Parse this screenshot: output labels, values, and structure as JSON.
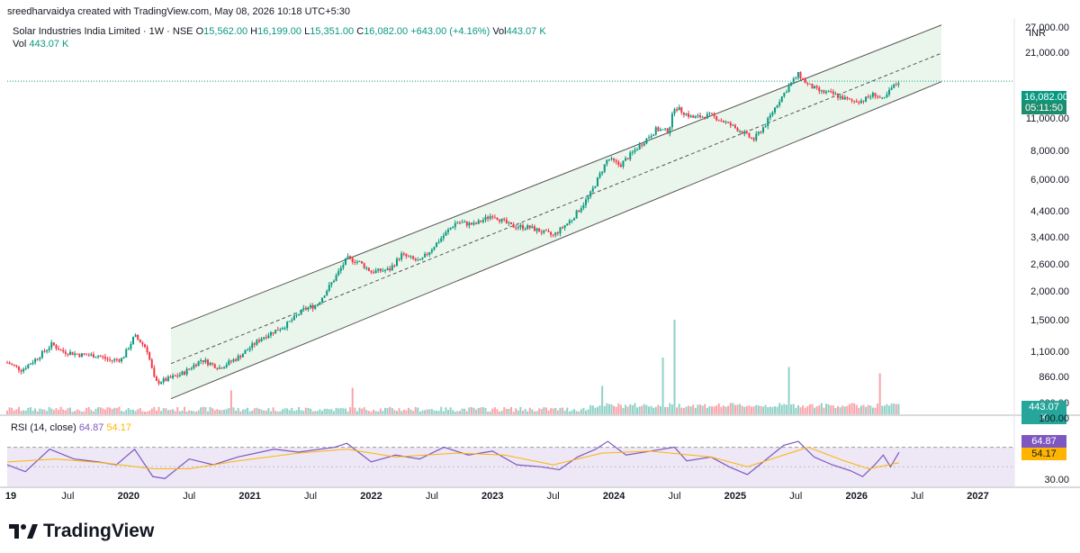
{
  "header": {
    "text": "sreedharvaidya created with TradingView.com, May 08, 2026 10:18 UTC+5:30"
  },
  "legend": {
    "symbol": "Solar Industries India Limited · 1W · NSE",
    "o_label": "O",
    "o": "15,562.00",
    "h_label": "H",
    "h": "16,199.00",
    "l_label": "L",
    "l": "15,351.00",
    "c_label": "C",
    "c": "16,082.00",
    "change": "+643.00 (+4.16%)",
    "vol_label": "Vol",
    "vol": "443.07 K"
  },
  "vol_legend": {
    "label": "Vol",
    "value": "443.07 K"
  },
  "rsi_legend": {
    "label": "RSI (14, close)",
    "value1": "64.87",
    "value2": "54.17"
  },
  "currency": "INR",
  "price_axis": [
    {
      "label": "27,000.00",
      "price": 27000
    },
    {
      "label": "21,000.00",
      "price": 21000
    },
    {
      "label": "11,000.00",
      "price": 11000
    },
    {
      "label": "8,000.00",
      "price": 8000
    },
    {
      "label": "6,000.00",
      "price": 6000
    },
    {
      "label": "4,400.00",
      "price": 4400
    },
    {
      "label": "3,400.00",
      "price": 3400
    },
    {
      "label": "2,600.00",
      "price": 2600
    },
    {
      "label": "2,000.00",
      "price": 2000
    },
    {
      "label": "1,500.00",
      "price": 1500
    },
    {
      "label": "1,100.00",
      "price": 1100
    },
    {
      "label": "860.00",
      "price": 860
    },
    {
      "label": "660.00",
      "price": 660
    }
  ],
  "tags": {
    "price": "16,082.00",
    "countdown": "05:11:50",
    "volume": "443.07 K",
    "rsi": "64.87",
    "rsi_ma": "54.17"
  },
  "rsi_axis": {
    "top": "100.00",
    "bottom": "30.00"
  },
  "time_axis": [
    {
      "label": "19",
      "t": 2019.0,
      "year": true
    },
    {
      "label": "Jul",
      "t": 2019.5,
      "year": false
    },
    {
      "label": "2020",
      "t": 2020.0,
      "year": true
    },
    {
      "label": "Jul",
      "t": 2020.5,
      "year": false
    },
    {
      "label": "2021",
      "t": 2021.0,
      "year": true
    },
    {
      "label": "Jul",
      "t": 2021.5,
      "year": false
    },
    {
      "label": "2022",
      "t": 2022.0,
      "year": true
    },
    {
      "label": "Jul",
      "t": 2022.5,
      "year": false
    },
    {
      "label": "2023",
      "t": 2023.0,
      "year": true
    },
    {
      "label": "Jul",
      "t": 2023.5,
      "year": false
    },
    {
      "label": "2024",
      "t": 2024.0,
      "year": true
    },
    {
      "label": "Jul",
      "t": 2024.5,
      "year": false
    },
    {
      "label": "2025",
      "t": 2025.0,
      "year": true
    },
    {
      "label": "Jul",
      "t": 2025.5,
      "year": false
    },
    {
      "label": "2026",
      "t": 2026.0,
      "year": true
    },
    {
      "label": "Jul",
      "t": 2026.5,
      "year": false
    },
    {
      "label": "2027",
      "t": 2027.0,
      "year": true
    }
  ],
  "branding": {
    "name": "TradingView"
  },
  "colors": {
    "up": "#089981",
    "down": "#f23645",
    "channel_fill": "#e8f5e9",
    "rsi_band": "#ede7f6",
    "rsi_line": "#7e57c2",
    "rsi_ma": "#ffb400",
    "price_tag": "#089981",
    "countdown_tag": "#1e8c6e"
  },
  "chart_data": {
    "type": "candlestick",
    "title": "Solar Industries India Limited · 1W · NSE",
    "scale": "log",
    "ylim": [
      600,
      30000
    ],
    "xlim": [
      2019.0,
      2027.3
    ],
    "price_series": [
      {
        "t": 2019.0,
        "p": 1000
      },
      {
        "t": 2019.12,
        "p": 930
      },
      {
        "t": 2019.25,
        "p": 1050
      },
      {
        "t": 2019.37,
        "p": 1200
      },
      {
        "t": 2019.45,
        "p": 1120
      },
      {
        "t": 2019.6,
        "p": 1080
      },
      {
        "t": 2019.75,
        "p": 1070
      },
      {
        "t": 2019.85,
        "p": 1020
      },
      {
        "t": 2019.95,
        "p": 1040
      },
      {
        "t": 2020.05,
        "p": 1300
      },
      {
        "t": 2020.15,
        "p": 1150
      },
      {
        "t": 2020.22,
        "p": 820
      },
      {
        "t": 2020.3,
        "p": 840
      },
      {
        "t": 2020.45,
        "p": 900
      },
      {
        "t": 2020.6,
        "p": 1030
      },
      {
        "t": 2020.75,
        "p": 950
      },
      {
        "t": 2020.9,
        "p": 1050
      },
      {
        "t": 2021.1,
        "p": 1280
      },
      {
        "t": 2021.3,
        "p": 1450
      },
      {
        "t": 2021.45,
        "p": 1700
      },
      {
        "t": 2021.55,
        "p": 1760
      },
      {
        "t": 2021.7,
        "p": 2300
      },
      {
        "t": 2021.8,
        "p": 2800
      },
      {
        "t": 2021.9,
        "p": 2700
      },
      {
        "t": 2022.0,
        "p": 2450
      },
      {
        "t": 2022.15,
        "p": 2500
      },
      {
        "t": 2022.25,
        "p": 2900
      },
      {
        "t": 2022.4,
        "p": 2700
      },
      {
        "t": 2022.55,
        "p": 3300
      },
      {
        "t": 2022.7,
        "p": 4000
      },
      {
        "t": 2022.85,
        "p": 3900
      },
      {
        "t": 2023.0,
        "p": 4300
      },
      {
        "t": 2023.15,
        "p": 3850
      },
      {
        "t": 2023.3,
        "p": 3800
      },
      {
        "t": 2023.5,
        "p": 3500
      },
      {
        "t": 2023.65,
        "p": 4100
      },
      {
        "t": 2023.8,
        "p": 5200
      },
      {
        "t": 2023.95,
        "p": 7500
      },
      {
        "t": 2024.05,
        "p": 7000
      },
      {
        "t": 2024.2,
        "p": 8400
      },
      {
        "t": 2024.35,
        "p": 10000
      },
      {
        "t": 2024.45,
        "p": 9800
      },
      {
        "t": 2024.5,
        "p": 12500
      },
      {
        "t": 2024.65,
        "p": 11200
      },
      {
        "t": 2024.8,
        "p": 11500
      },
      {
        "t": 2024.95,
        "p": 10500
      },
      {
        "t": 2025.05,
        "p": 9800
      },
      {
        "t": 2025.15,
        "p": 9000
      },
      {
        "t": 2025.25,
        "p": 10500
      },
      {
        "t": 2025.35,
        "p": 13000
      },
      {
        "t": 2025.45,
        "p": 15500
      },
      {
        "t": 2025.52,
        "p": 17200
      },
      {
        "t": 2025.6,
        "p": 15500
      },
      {
        "t": 2025.7,
        "p": 14500
      },
      {
        "t": 2025.8,
        "p": 14200
      },
      {
        "t": 2025.95,
        "p": 13200
      },
      {
        "t": 2026.05,
        "p": 13300
      },
      {
        "t": 2026.15,
        "p": 14200
      },
      {
        "t": 2026.22,
        "p": 13200
      },
      {
        "t": 2026.28,
        "p": 14800
      },
      {
        "t": 2026.35,
        "p": 16082
      }
    ],
    "volume_series": [
      {
        "t": 2021.85,
        "v": 420
      },
      {
        "t": 2024.5,
        "v": 1500
      },
      {
        "t": 2024.4,
        "v": 900
      },
      {
        "t": 2025.45,
        "v": 750
      },
      {
        "t": 2026.2,
        "v": 650
      },
      {
        "t": 2020.85,
        "v": 380
      },
      {
        "t": 2023.9,
        "v": 450
      }
    ],
    "channel": {
      "start_t": 2020.35,
      "end_t": 2026.7,
      "upper": [
        1400,
        28000
      ],
      "lower": [
        700,
        16000
      ],
      "mid": [
        990,
        21200
      ]
    },
    "rsi_ylim": [
      30,
      100
    ],
    "rsi_series": [
      {
        "t": 2019.0,
        "v": 52
      },
      {
        "t": 2019.15,
        "v": 45
      },
      {
        "t": 2019.35,
        "v": 68
      },
      {
        "t": 2019.55,
        "v": 58
      },
      {
        "t": 2019.75,
        "v": 55
      },
      {
        "t": 2019.9,
        "v": 52
      },
      {
        "t": 2020.05,
        "v": 68
      },
      {
        "t": 2020.2,
        "v": 40
      },
      {
        "t": 2020.3,
        "v": 38
      },
      {
        "t": 2020.5,
        "v": 58
      },
      {
        "t": 2020.7,
        "v": 52
      },
      {
        "t": 2020.9,
        "v": 60
      },
      {
        "t": 2021.2,
        "v": 68
      },
      {
        "t": 2021.4,
        "v": 65
      },
      {
        "t": 2021.7,
        "v": 70
      },
      {
        "t": 2021.8,
        "v": 74
      },
      {
        "t": 2022.0,
        "v": 55
      },
      {
        "t": 2022.2,
        "v": 62
      },
      {
        "t": 2022.4,
        "v": 58
      },
      {
        "t": 2022.6,
        "v": 70
      },
      {
        "t": 2022.8,
        "v": 62
      },
      {
        "t": 2023.0,
        "v": 66
      },
      {
        "t": 2023.2,
        "v": 52
      },
      {
        "t": 2023.4,
        "v": 50
      },
      {
        "t": 2023.55,
        "v": 47
      },
      {
        "t": 2023.7,
        "v": 60
      },
      {
        "t": 2023.85,
        "v": 68
      },
      {
        "t": 2023.95,
        "v": 76
      },
      {
        "t": 2024.1,
        "v": 62
      },
      {
        "t": 2024.3,
        "v": 66
      },
      {
        "t": 2024.5,
        "v": 70
      },
      {
        "t": 2024.6,
        "v": 56
      },
      {
        "t": 2024.8,
        "v": 60
      },
      {
        "t": 2024.95,
        "v": 50
      },
      {
        "t": 2025.1,
        "v": 42
      },
      {
        "t": 2025.2,
        "v": 52
      },
      {
        "t": 2025.4,
        "v": 72
      },
      {
        "t": 2025.52,
        "v": 76
      },
      {
        "t": 2025.65,
        "v": 60
      },
      {
        "t": 2025.8,
        "v": 52
      },
      {
        "t": 2025.95,
        "v": 46
      },
      {
        "t": 2026.05,
        "v": 40
      },
      {
        "t": 2026.15,
        "v": 52
      },
      {
        "t": 2026.22,
        "v": 62
      },
      {
        "t": 2026.28,
        "v": 50
      },
      {
        "t": 2026.35,
        "v": 64.87
      }
    ],
    "rsi_ma_series": [
      {
        "t": 2019.0,
        "v": 55
      },
      {
        "t": 2019.4,
        "v": 58
      },
      {
        "t": 2019.8,
        "v": 54
      },
      {
        "t": 2020.2,
        "v": 48
      },
      {
        "t": 2020.5,
        "v": 48
      },
      {
        "t": 2020.9,
        "v": 56
      },
      {
        "t": 2021.4,
        "v": 64
      },
      {
        "t": 2021.8,
        "v": 68
      },
      {
        "t": 2022.2,
        "v": 60
      },
      {
        "t": 2022.7,
        "v": 64
      },
      {
        "t": 2023.1,
        "v": 62
      },
      {
        "t": 2023.5,
        "v": 52
      },
      {
        "t": 2023.9,
        "v": 64
      },
      {
        "t": 2024.3,
        "v": 66
      },
      {
        "t": 2024.8,
        "v": 60
      },
      {
        "t": 2025.1,
        "v": 50
      },
      {
        "t": 2025.4,
        "v": 62
      },
      {
        "t": 2025.6,
        "v": 70
      },
      {
        "t": 2025.9,
        "v": 56
      },
      {
        "t": 2026.1,
        "v": 48
      },
      {
        "t": 2026.35,
        "v": 54.17
      }
    ],
    "rsi_upper_band": 70,
    "rsi_lower_band": 30
  }
}
